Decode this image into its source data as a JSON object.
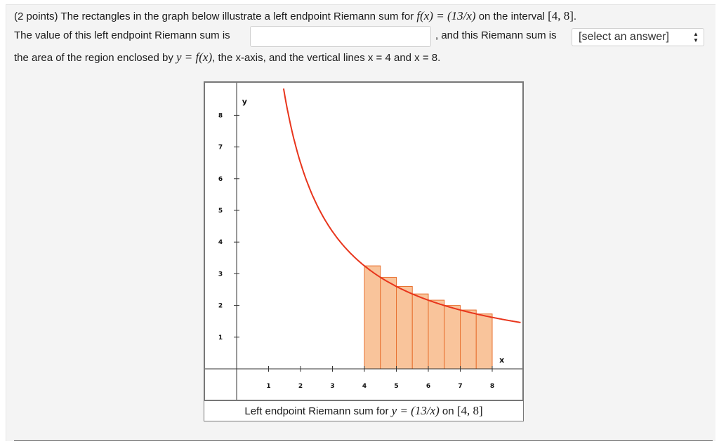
{
  "question": {
    "prefix": "(2 points) The rectangles in the graph below illustrate a left endpoint Riemann sum for ",
    "function_expr": "f(x) = (13/x)",
    "mid": " on the interval ",
    "interval": "[4, 8]",
    "suffix": ".",
    "line2_lead": "The value of this left endpoint Riemann sum is",
    "line2_mid": ", and this Riemann sum is",
    "line3_lead": "the area of the region enclosed by ",
    "line3_expr": "y = f(x)",
    "line3_rest": ", the x-axis, and the vertical lines x = 4 and x = 8."
  },
  "answer_input": {
    "value": "",
    "placeholder": ""
  },
  "comparison_select": {
    "selected": "[select an answer]"
  },
  "graph": {
    "caption_prefix": "Left endpoint Riemann sum for ",
    "caption_expr": "y = (13/x)",
    "caption_mid": " on ",
    "caption_interval": "[4, 8]",
    "x_axis_label": "x",
    "y_axis_label": "y",
    "curve_color": "#e8351c",
    "rect_fill": "#f9c49b",
    "rect_stroke": "#e8702f"
  },
  "chart_data": {
    "type": "area",
    "function": "13/x",
    "x_ticks": [
      1,
      2,
      3,
      4,
      5,
      6,
      7,
      8
    ],
    "y_ticks": [
      1,
      2,
      3,
      4,
      5,
      6,
      7,
      8
    ],
    "xlim": [
      -0.9,
      8.9
    ],
    "ylim": [
      -0.9,
      8.9
    ],
    "xlabel": "x",
    "ylabel": "y",
    "rectangles": {
      "left_endpoints": [
        4.0,
        4.5,
        5.0,
        5.5,
        6.0,
        6.5,
        7.0,
        7.5
      ],
      "width": 0.5,
      "heights": [
        3.25,
        2.889,
        2.6,
        2.364,
        2.167,
        2.0,
        1.857,
        1.733
      ]
    },
    "legend": "none",
    "grid": false
  }
}
